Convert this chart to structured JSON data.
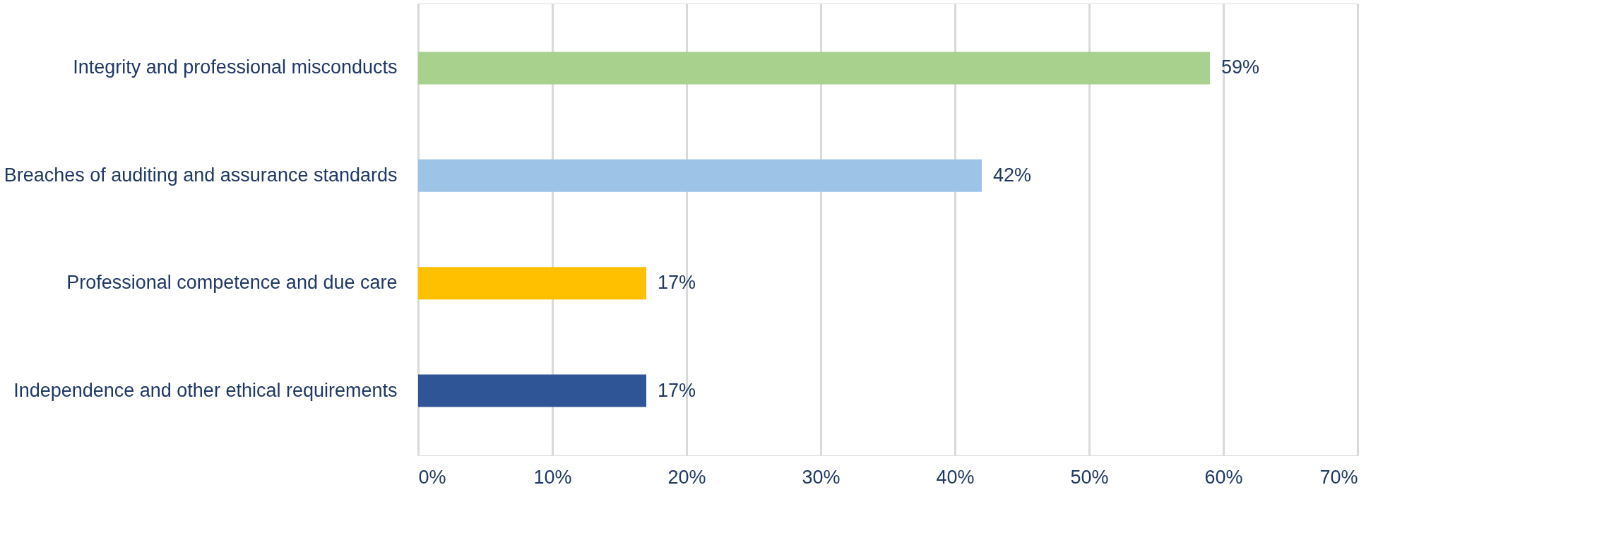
{
  "chart_data": {
    "type": "bar",
    "orientation": "horizontal",
    "categories": [
      "Integrity and professional misconducts",
      "Breaches of auditing and assurance standards",
      "Professional competence and due care",
      "Independence and other ethical requirements"
    ],
    "values": [
      59,
      42,
      17,
      17
    ],
    "colors": [
      "#a9d18e",
      "#9dc3e6",
      "#ffc000",
      "#2f5597"
    ],
    "value_labels": [
      "59%",
      "42%",
      "17%",
      "17%"
    ],
    "xlim": [
      0,
      70
    ],
    "xticks": [
      {
        "value": 0,
        "label": "0%"
      },
      {
        "value": 10,
        "label": "10%"
      },
      {
        "value": 20,
        "label": "20%"
      },
      {
        "value": 30,
        "label": "30%"
      },
      {
        "value": 40,
        "label": "40%"
      },
      {
        "value": 50,
        "label": "50%"
      },
      {
        "value": 60,
        "label": "60%"
      },
      {
        "value": 70,
        "label": "70%"
      }
    ],
    "grid": "x",
    "legend": false
  }
}
